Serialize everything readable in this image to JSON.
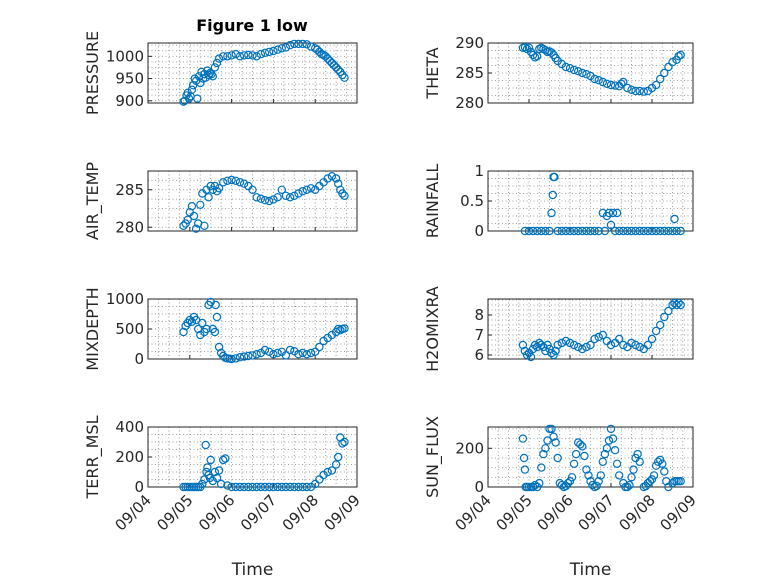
{
  "figure": {
    "title": "Figure 1 low",
    "marker_color": "#0072bd",
    "marker": "circle-open"
  },
  "chart_data": [
    {
      "type": "scatter",
      "id": "pressure",
      "ylabel": "PRESSURE",
      "xlim": [
        "09/04",
        "09/09"
      ],
      "ylim": [
        895,
        1030
      ],
      "yticks": [
        900,
        950,
        1000
      ],
      "grid": true,
      "show_x_ticklabels": false,
      "xtick_labels": [
        "09/04",
        "09/05",
        "09/06",
        "09/07",
        "09/08",
        "09/09"
      ],
      "x": [
        0.85,
        0.88,
        0.92,
        0.95,
        0.98,
        1.02,
        1.05,
        1.08,
        1.12,
        1.15,
        1.18,
        1.22,
        1.25,
        1.28,
        1.32,
        1.35,
        1.38,
        1.42,
        1.45,
        1.48,
        1.52,
        1.55,
        1.6,
        1.65,
        1.7,
        1.8,
        1.9,
        2.0,
        2.1,
        2.2,
        2.3,
        2.4,
        2.5,
        2.6,
        2.7,
        2.8,
        2.9,
        3.0,
        3.1,
        3.2,
        3.3,
        3.4,
        3.5,
        3.6,
        3.7,
        3.8,
        3.9,
        4.0,
        4.05,
        4.1,
        4.15,
        4.2,
        4.25,
        4.3,
        4.35,
        4.4,
        4.45,
        4.5,
        4.55,
        4.6,
        4.65,
        4.7
      ],
      "y": [
        898,
        900,
        912,
        918,
        905,
        910,
        925,
        935,
        950,
        945,
        905,
        955,
        940,
        965,
        950,
        960,
        952,
        968,
        958,
        962,
        960,
        955,
        975,
        985,
        995,
        1000,
        1000,
        1002,
        1005,
        1000,
        1002,
        1003,
        1002,
        1000,
        1005,
        1008,
        1010,
        1012,
        1015,
        1018,
        1020,
        1025,
        1028,
        1028,
        1028,
        1027,
        1022,
        1018,
        1015,
        1010,
        1005,
        1003,
        1000,
        995,
        990,
        985,
        980,
        975,
        970,
        965,
        958,
        952
      ]
    },
    {
      "type": "scatter",
      "id": "theta",
      "ylabel": "THETA",
      "xlim": [
        "09/04",
        "09/09"
      ],
      "ylim": [
        280,
        290
      ],
      "yticks": [
        280,
        285,
        290
      ],
      "grid": true,
      "show_x_ticklabels": false,
      "xtick_labels": [
        "09/04",
        "09/05",
        "09/06",
        "09/07",
        "09/08",
        "09/09"
      ],
      "x": [
        0.85,
        0.9,
        0.95,
        1.0,
        1.05,
        1.1,
        1.15,
        1.2,
        1.25,
        1.3,
        1.35,
        1.4,
        1.45,
        1.5,
        1.55,
        1.6,
        1.65,
        1.7,
        1.8,
        1.9,
        2.0,
        2.1,
        2.2,
        2.3,
        2.4,
        2.5,
        2.6,
        2.7,
        2.8,
        2.9,
        3.0,
        3.1,
        3.2,
        3.25,
        3.3,
        3.4,
        3.5,
        3.6,
        3.7,
        3.8,
        3.9,
        4.0,
        4.1,
        4.2,
        4.3,
        4.4,
        4.5,
        4.6,
        4.65,
        4.7
      ],
      "y": [
        289.2,
        289.3,
        289.0,
        289.2,
        288.5,
        288.0,
        287.6,
        287.8,
        289.0,
        289.2,
        289.0,
        288.8,
        288.5,
        288.6,
        288.4,
        288.0,
        287.5,
        287.0,
        286.5,
        286.0,
        285.8,
        285.5,
        285.3,
        285.0,
        284.8,
        284.5,
        284.0,
        283.8,
        283.5,
        283.2,
        283.0,
        282.9,
        282.8,
        283.2,
        283.5,
        282.5,
        282.2,
        282.0,
        282.0,
        281.9,
        282.0,
        282.5,
        283.0,
        284.0,
        285.0,
        286.0,
        286.8,
        287.2,
        287.8,
        288.0
      ]
    },
    {
      "type": "scatter",
      "id": "air_temp",
      "ylabel": "AIR_TEMP",
      "xlim": [
        "09/04",
        "09/09"
      ],
      "ylim": [
        279.5,
        287.5
      ],
      "yticks": [
        280,
        285
      ],
      "grid": true,
      "show_x_ticklabels": false,
      "xtick_labels": [
        "09/04",
        "09/05",
        "09/06",
        "09/07",
        "09/08",
        "09/09"
      ],
      "x": [
        0.85,
        0.9,
        0.95,
        1.0,
        1.05,
        1.1,
        1.15,
        1.2,
        1.25,
        1.3,
        1.35,
        1.4,
        1.45,
        1.5,
        1.55,
        1.6,
        1.65,
        1.7,
        1.8,
        1.9,
        2.0,
        2.1,
        2.2,
        2.3,
        2.4,
        2.5,
        2.6,
        2.7,
        2.8,
        2.9,
        3.0,
        3.1,
        3.2,
        3.3,
        3.4,
        3.5,
        3.6,
        3.7,
        3.8,
        3.9,
        4.0,
        4.1,
        4.2,
        4.3,
        4.4,
        4.5,
        4.55,
        4.6,
        4.65,
        4.7
      ],
      "y": [
        280.2,
        280.5,
        281.0,
        282.0,
        282.8,
        281.5,
        279.8,
        280.5,
        283.0,
        284.5,
        280.2,
        285.0,
        284.0,
        285.5,
        285.0,
        285.5,
        284.8,
        285.2,
        286.0,
        286.2,
        286.3,
        286.2,
        286.0,
        285.8,
        285.5,
        285.0,
        284.0,
        283.8,
        283.6,
        283.5,
        283.7,
        284.0,
        285.0,
        284.2,
        284.0,
        284.2,
        284.5,
        284.8,
        285.0,
        285.2,
        285.0,
        285.5,
        286.0,
        286.5,
        286.8,
        286.5,
        285.8,
        285.0,
        284.5,
        284.2
      ]
    },
    {
      "type": "scatter",
      "id": "rainfall",
      "ylabel": "RAINFALL",
      "xlim": [
        "09/04",
        "09/09"
      ],
      "ylim": [
        0,
        1
      ],
      "yticks": [
        0,
        0.5,
        1
      ],
      "grid": true,
      "show_x_ticklabels": false,
      "xtick_labels": [
        "09/04",
        "09/05",
        "09/06",
        "09/07",
        "09/08",
        "09/09"
      ],
      "x": [
        0.9,
        1.0,
        1.1,
        1.2,
        1.3,
        1.4,
        1.5,
        1.55,
        1.58,
        1.6,
        1.62,
        1.7,
        1.8,
        1.9,
        2.0,
        2.1,
        2.2,
        2.3,
        2.4,
        2.5,
        2.6,
        2.7,
        2.8,
        2.85,
        2.9,
        2.95,
        3.0,
        3.05,
        3.1,
        3.15,
        3.2,
        3.3,
        3.4,
        3.5,
        3.6,
        3.7,
        3.8,
        3.9,
        4.0,
        4.1,
        4.2,
        4.3,
        4.4,
        4.5,
        4.55,
        4.6,
        4.7
      ],
      "y": [
        0,
        0,
        0,
        0,
        0,
        0,
        0,
        0.3,
        0.6,
        0.9,
        0.9,
        0,
        0,
        0,
        0,
        0,
        0,
        0,
        0,
        0,
        0,
        0,
        0.3,
        0,
        0.25,
        0.3,
        0.1,
        0.3,
        0,
        0.3,
        0,
        0,
        0,
        0,
        0,
        0,
        0,
        0,
        0,
        0,
        0,
        0,
        0,
        0,
        0.2,
        0,
        0
      ]
    },
    {
      "type": "scatter",
      "id": "mixdepth",
      "ylabel": "MIXDEPTH",
      "xlim": [
        "09/04",
        "09/09"
      ],
      "ylim": [
        0,
        1000
      ],
      "yticks": [
        0,
        500,
        1000
      ],
      "grid": true,
      "show_x_ticklabels": false,
      "xtick_labels": [
        "09/04",
        "09/05",
        "09/06",
        "09/07",
        "09/08",
        "09/09"
      ],
      "x": [
        0.85,
        0.9,
        0.95,
        1.0,
        1.05,
        1.1,
        1.15,
        1.2,
        1.25,
        1.3,
        1.35,
        1.4,
        1.45,
        1.5,
        1.55,
        1.6,
        1.62,
        1.65,
        1.7,
        1.75,
        1.8,
        1.85,
        1.9,
        1.95,
        2.0,
        2.1,
        2.2,
        2.3,
        2.4,
        2.5,
        2.6,
        2.7,
        2.8,
        2.9,
        3.0,
        3.1,
        3.2,
        3.3,
        3.4,
        3.5,
        3.6,
        3.7,
        3.8,
        3.9,
        4.0,
        4.1,
        4.2,
        4.3,
        4.4,
        4.5,
        4.55,
        4.6,
        4.65,
        4.7
      ],
      "y": [
        450,
        550,
        600,
        650,
        620,
        700,
        650,
        500,
        400,
        600,
        450,
        500,
        900,
        950,
        500,
        450,
        900,
        700,
        200,
        100,
        50,
        20,
        10,
        5,
        0,
        10,
        30,
        40,
        50,
        60,
        80,
        100,
        150,
        120,
        80,
        100,
        120,
        60,
        150,
        130,
        80,
        100,
        80,
        100,
        120,
        200,
        300,
        350,
        400,
        450,
        500,
        480,
        500,
        510
      ]
    },
    {
      "type": "scatter",
      "id": "h2omixra",
      "ylabel": "H2OMIXRA",
      "xlim": [
        "09/04",
        "09/09"
      ],
      "ylim": [
        5.8,
        8.8
      ],
      "yticks": [
        6,
        7,
        8
      ],
      "grid": true,
      "show_x_ticklabels": false,
      "xtick_labels": [
        "09/04",
        "09/05",
        "09/06",
        "09/07",
        "09/08",
        "09/09"
      ],
      "x": [
        0.85,
        0.9,
        0.95,
        1.0,
        1.05,
        1.1,
        1.15,
        1.2,
        1.25,
        1.3,
        1.35,
        1.4,
        1.45,
        1.5,
        1.55,
        1.6,
        1.65,
        1.7,
        1.8,
        1.9,
        2.0,
        2.1,
        2.2,
        2.3,
        2.4,
        2.5,
        2.6,
        2.7,
        2.8,
        2.9,
        3.0,
        3.1,
        3.2,
        3.3,
        3.4,
        3.5,
        3.6,
        3.7,
        3.8,
        3.9,
        4.0,
        4.1,
        4.2,
        4.3,
        4.4,
        4.5,
        4.55,
        4.6,
        4.65,
        4.7
      ],
      "y": [
        6.5,
        6.2,
        6.0,
        6.1,
        5.9,
        6.3,
        6.5,
        6.4,
        6.6,
        6.5,
        6.4,
        6.2,
        6.5,
        6.3,
        6.1,
        6.0,
        6.2,
        6.5,
        6.6,
        6.7,
        6.6,
        6.5,
        6.4,
        6.3,
        6.4,
        6.5,
        6.8,
        6.9,
        7.0,
        6.7,
        6.5,
        6.6,
        6.8,
        6.5,
        6.4,
        6.6,
        6.5,
        6.4,
        6.3,
        6.5,
        6.8,
        7.2,
        7.5,
        7.9,
        8.2,
        8.5,
        8.6,
        8.5,
        8.6,
        8.5
      ]
    },
    {
      "type": "scatter",
      "id": "terr_msl",
      "ylabel": "TERR_MSL",
      "xlim": [
        "09/04",
        "09/09"
      ],
      "ylim": [
        0,
        400
      ],
      "yticks": [
        0,
        200,
        400
      ],
      "grid": true,
      "show_x_ticklabels": true,
      "xlabel": "Time",
      "xtick_labels": [
        "09/04",
        "09/05",
        "09/06",
        "09/07",
        "09/08",
        "09/09"
      ],
      "x": [
        0.85,
        0.9,
        0.95,
        1.0,
        1.05,
        1.1,
        1.15,
        1.2,
        1.25,
        1.3,
        1.35,
        1.38,
        1.4,
        1.42,
        1.45,
        1.48,
        1.5,
        1.55,
        1.6,
        1.65,
        1.7,
        1.75,
        1.8,
        1.85,
        1.9,
        2.0,
        2.1,
        2.2,
        2.3,
        2.4,
        2.5,
        2.6,
        2.7,
        2.8,
        2.9,
        3.0,
        3.1,
        3.2,
        3.3,
        3.4,
        3.5,
        3.6,
        3.7,
        3.8,
        3.9,
        4.0,
        4.1,
        4.2,
        4.3,
        4.4,
        4.5,
        4.55,
        4.6,
        4.65,
        4.7
      ],
      "y": [
        0,
        0,
        0,
        0,
        0,
        0,
        0,
        0,
        0,
        20,
        50,
        280,
        100,
        130,
        80,
        60,
        180,
        40,
        100,
        60,
        110,
        20,
        180,
        190,
        10,
        0,
        0,
        0,
        0,
        0,
        0,
        0,
        0,
        0,
        0,
        0,
        0,
        0,
        0,
        0,
        0,
        0,
        0,
        0,
        0,
        20,
        50,
        80,
        100,
        110,
        150,
        200,
        330,
        290,
        300
      ]
    },
    {
      "type": "scatter",
      "id": "sun_flux",
      "ylabel": "SUN_FLUX",
      "xlim": [
        "09/04",
        "09/09"
      ],
      "ylim": [
        0,
        310
      ],
      "yticks": [
        0,
        200
      ],
      "grid": true,
      "show_x_ticklabels": true,
      "xlabel": "Time",
      "xtick_labels": [
        "09/04",
        "09/05",
        "09/06",
        "09/07",
        "09/08",
        "09/09"
      ],
      "x": [
        0.85,
        0.88,
        0.9,
        0.92,
        0.95,
        1.0,
        1.05,
        1.1,
        1.15,
        1.2,
        1.25,
        1.3,
        1.35,
        1.4,
        1.45,
        1.5,
        1.55,
        1.6,
        1.65,
        1.7,
        1.75,
        1.8,
        1.85,
        1.9,
        1.95,
        2.0,
        2.05,
        2.1,
        2.15,
        2.2,
        2.25,
        2.3,
        2.35,
        2.4,
        2.45,
        2.5,
        2.55,
        2.6,
        2.65,
        2.7,
        2.75,
        2.8,
        2.85,
        2.9,
        2.95,
        3.0,
        3.05,
        3.1,
        3.15,
        3.2,
        3.3,
        3.35,
        3.4,
        3.45,
        3.5,
        3.55,
        3.6,
        3.65,
        3.7,
        3.8,
        3.85,
        3.9,
        3.95,
        4.0,
        4.05,
        4.1,
        4.15,
        4.2,
        4.25,
        4.3,
        4.35,
        4.4,
        4.5,
        4.55,
        4.6,
        4.65,
        4.7
      ],
      "y": [
        250,
        150,
        90,
        0,
        0,
        0,
        0,
        0,
        10,
        0,
        20,
        100,
        170,
        200,
        240,
        300,
        300,
        260,
        230,
        150,
        20,
        10,
        0,
        5,
        20,
        30,
        50,
        120,
        170,
        230,
        220,
        210,
        160,
        90,
        60,
        30,
        10,
        0,
        5,
        30,
        60,
        130,
        170,
        200,
        240,
        300,
        250,
        190,
        120,
        60,
        20,
        0,
        0,
        10,
        50,
        90,
        150,
        170,
        130,
        0,
        5,
        20,
        30,
        40,
        60,
        110,
        130,
        140,
        120,
        80,
        30,
        0,
        20,
        30,
        30,
        30,
        30
      ]
    }
  ]
}
